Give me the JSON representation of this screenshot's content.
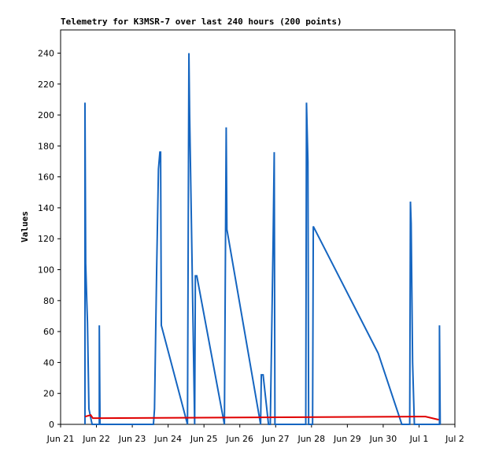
{
  "chart_data": {
    "type": "line",
    "title": "Telemetry for K3MSR-7 over last 240 hours (200 points)",
    "y_label": "Values",
    "xlim": [
      0,
      11
    ],
    "xticks": [
      {
        "value": 0,
        "label": "Jun 21"
      },
      {
        "value": 1,
        "label": "Jun 22"
      },
      {
        "value": 2,
        "label": "Jun 23"
      },
      {
        "value": 3,
        "label": "Jun 24"
      },
      {
        "value": 4,
        "label": "Jun 25"
      },
      {
        "value": 5,
        "label": "Jun 26"
      },
      {
        "value": 6,
        "label": "Jun 27"
      },
      {
        "value": 7,
        "label": "Jun 28"
      },
      {
        "value": 8,
        "label": "Jun 29"
      },
      {
        "value": 9,
        "label": "Jun 30"
      },
      {
        "value": 10,
        "label": "Jul 1"
      },
      {
        "value": 11,
        "label": "Jul 2"
      }
    ],
    "ylim": [
      0,
      255
    ],
    "yticks": [
      0,
      20,
      40,
      60,
      80,
      100,
      120,
      140,
      160,
      180,
      200,
      220,
      240
    ],
    "series": [
      {
        "color": "#1565c0",
        "x": [
          0.68,
          0.68,
          0.7,
          0.73,
          0.75,
          0.79,
          0.86,
          0.88,
          1.08,
          1.08,
          1.1,
          2.59,
          2.62,
          2.68,
          2.73,
          2.77,
          2.79,
          2.81,
          3.54,
          3.58,
          3.6,
          3.65,
          3.74,
          3.76,
          3.8,
          4.57,
          4.62,
          4.64,
          5.58,
          5.6,
          5.65,
          5.8,
          5.85,
          5.93,
          5.96,
          5.98,
          6.84,
          6.86,
          6.9,
          6.92,
          7.03,
          7.05,
          8.86,
          9.52,
          9.74,
          9.76,
          9.78,
          9.82,
          9.87,
          10.57,
          10.57,
          10.59
        ],
        "values": [
          0,
          208,
          104,
          80,
          66,
          10,
          2,
          0,
          0,
          64,
          0,
          0,
          10,
          100,
          165,
          176,
          176,
          64,
          0,
          240,
          200,
          130,
          0,
          96,
          96,
          0,
          192,
          126,
          0,
          32,
          32,
          0,
          0,
          120,
          176,
          0,
          0,
          208,
          170,
          0,
          0,
          128,
          46,
          0,
          0,
          144,
          130,
          40,
          0,
          0,
          64,
          0
        ]
      },
      {
        "color": "#e00000",
        "x": [
          0.68,
          0.84,
          0.9,
          0.99,
          9.96,
          10.18,
          10.55
        ],
        "values": [
          5,
          6,
          4,
          4,
          5,
          5,
          3
        ]
      }
    ]
  }
}
